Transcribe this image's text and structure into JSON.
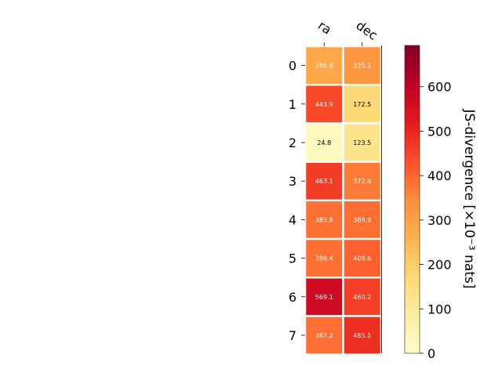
{
  "chart_data": {
    "type": "heatmap",
    "columns": [
      "ra",
      "dec"
    ],
    "rows": [
      "0",
      "1",
      "2",
      "3",
      "4",
      "5",
      "6",
      "7"
    ],
    "values": [
      [
        286.6,
        325.2
      ],
      [
        443.9,
        172.5
      ],
      [
        24.8,
        123.5
      ],
      [
        463.1,
        372.6
      ],
      [
        385.8,
        388.9
      ],
      [
        386.4,
        408.6
      ],
      [
        569.1,
        460.2
      ],
      [
        387.2,
        485.1
      ]
    ],
    "cell_labels": [
      [
        "286.6",
        "325.2"
      ],
      [
        "443.9",
        "172.5"
      ],
      [
        "24.8",
        "123.5"
      ],
      [
        "463.1",
        "372.6"
      ],
      [
        "385.8",
        "388.9"
      ],
      [
        "386.4",
        "408.6"
      ],
      [
        "569.1",
        "460.2"
      ],
      [
        "387.2",
        "485.1"
      ]
    ],
    "colormap": "YlOrRd",
    "color_range": [
      0,
      693
    ],
    "colorbar": {
      "label": "JS-divergence [×10⁻³ nats]",
      "ticks": [
        0,
        100,
        200,
        300,
        400,
        500,
        600
      ],
      "tick_labels": [
        "0",
        "100",
        "200",
        "300",
        "400",
        "500",
        "600"
      ]
    }
  }
}
